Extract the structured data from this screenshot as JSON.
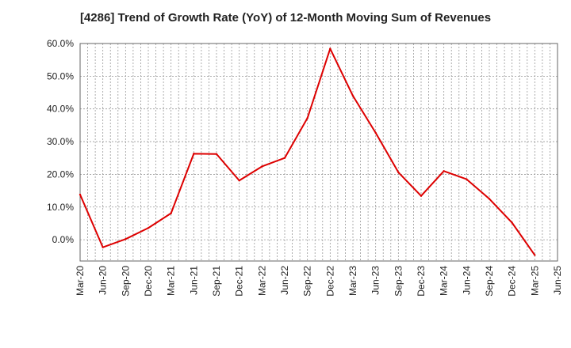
{
  "chart_data": {
    "type": "line",
    "title": "[4286]  Trend of Growth Rate (YoY) of 12-Month Moving Sum of Revenues",
    "xlabel": "",
    "ylabel": "",
    "ylim": [
      -6.5,
      60
    ],
    "y_ticks": [
      0,
      10,
      20,
      30,
      40,
      50,
      60
    ],
    "y_tick_labels": [
      "0.0%",
      "10.0%",
      "20.0%",
      "30.0%",
      "40.0%",
      "50.0%",
      "60.0%"
    ],
    "x_tick_labels": [
      "Mar-20",
      "Jun-20",
      "Sep-20",
      "Dec-20",
      "Mar-21",
      "Jun-21",
      "Sep-21",
      "Dec-21",
      "Mar-22",
      "Jun-22",
      "Sep-22",
      "Dec-22",
      "Mar-23",
      "Jun-23",
      "Sep-23",
      "Dec-23",
      "Mar-24",
      "Jun-24",
      "Sep-24",
      "Dec-24",
      "Mar-25",
      "Jun-25"
    ],
    "grid": true,
    "line_color": "#dd0000",
    "series": [
      {
        "values": [
          13.8,
          -2.3,
          0.2,
          3.6,
          8.1,
          26.3,
          26.2,
          18.1,
          22.4,
          25.0,
          37.2,
          58.4,
          44.0,
          32.7,
          20.6,
          13.4,
          21.0,
          18.5,
          12.5,
          5.2,
          -4.7,
          null
        ]
      }
    ]
  }
}
